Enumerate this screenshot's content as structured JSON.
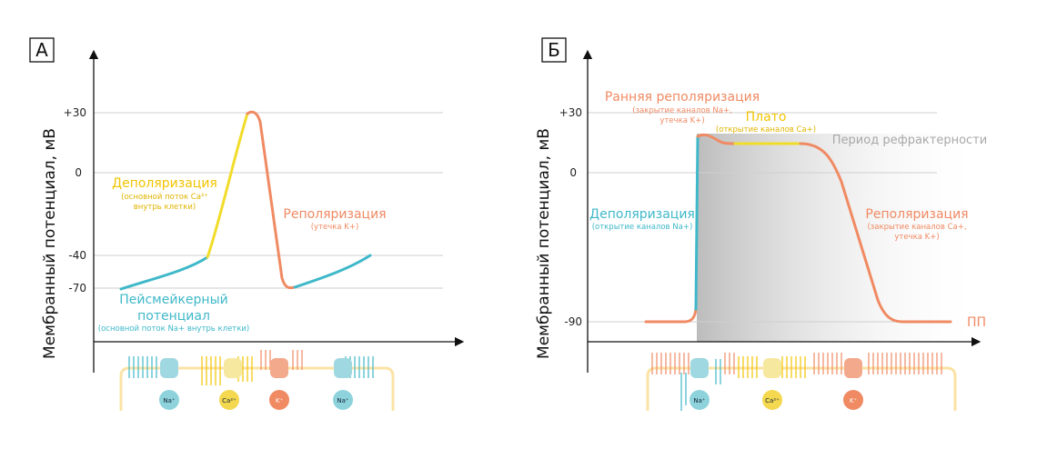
{
  "chart_data": [
    {
      "type": "line",
      "panel": "А",
      "ylabel": "Мембранный потенциал, мВ",
      "yticks": [
        "+30",
        "0",
        "-40",
        "-70"
      ],
      "series": [
        {
          "segment": "pacemaker",
          "color": "#3fb8c9",
          "points": [
            [
              0,
              -70
            ],
            [
              1,
              -65
            ],
            [
              2,
              -58
            ],
            [
              3,
              -50
            ],
            [
              4,
              -40
            ]
          ]
        },
        {
          "segment": "depolarization",
          "color": "#f2dc2a",
          "points": [
            [
              4,
              -40
            ],
            [
              4.8,
              -5
            ],
            [
              5.6,
              30
            ]
          ]
        },
        {
          "segment": "repolarization",
          "color": "#f08a63",
          "points": [
            [
              5.6,
              30
            ],
            [
              6.5,
              -55
            ],
            [
              7.2,
              -70
            ]
          ]
        },
        {
          "segment": "pacemaker-2",
          "color": "#3fb8c9",
          "points": [
            [
              7.2,
              -70
            ],
            [
              8.5,
              -58
            ],
            [
              10,
              -40
            ]
          ]
        }
      ],
      "annotations": {
        "depol_title": "Деполяризация",
        "depol_sub1": "(основной поток Ca²⁺",
        "depol_sub2": "внутрь клетки)",
        "repol_title": "Реполяризация",
        "repol_sub": "(утечка K+)",
        "pace_title1": "Пейсмейкерный",
        "pace_title2": "потенциал",
        "pace_sub": "(основной поток Na+ внутрь клетки)"
      },
      "channels": [
        "Na⁺",
        "Ca²⁺",
        "K⁺",
        "Na⁺"
      ]
    },
    {
      "type": "line",
      "panel": "Б",
      "ylabel": "Мембранный потенциал, мВ",
      "yticks": [
        "+30",
        "0",
        "-90"
      ],
      "series": [
        {
          "segment": "rest",
          "color": "#f08a63",
          "points": [
            [
              0,
              -90
            ],
            [
              1,
              -90
            ]
          ]
        },
        {
          "segment": "depolarization",
          "color": "#3fb8c9",
          "points": [
            [
              1,
              -90
            ],
            [
              1.05,
              20
            ]
          ]
        },
        {
          "segment": "early-repolarization",
          "color": "#f08a63",
          "points": [
            [
              1.05,
              20
            ],
            [
              1.8,
              15
            ]
          ]
        },
        {
          "segment": "plateau",
          "color": "#f2dc2a",
          "points": [
            [
              1.8,
              15
            ],
            [
              3.5,
              15
            ]
          ]
        },
        {
          "segment": "repolarization",
          "color": "#f08a63",
          "points": [
            [
              3.5,
              15
            ],
            [
              5.3,
              -90
            ],
            [
              7.5,
              -90
            ]
          ]
        }
      ],
      "annotations": {
        "early_title": "Ранняя реполяризация",
        "early_sub1": "(закрытие каналов Na+,",
        "early_sub2": "утечка K+)",
        "plateau_title": "Плато",
        "plateau_sub": "(открытие каналов Ca+)",
        "refract": "Период рефрактерности",
        "depol_title": "Деполяризация",
        "depol_sub": "(открытие каналов Na+)",
        "repol_title": "Реполяризация",
        "repol_sub1": "(закрытие каналов Ca+,",
        "repol_sub2": "утечка K+)",
        "pp": "ПП"
      },
      "channels": [
        "Na⁺",
        "Ca²⁺",
        "K⁺"
      ]
    }
  ]
}
